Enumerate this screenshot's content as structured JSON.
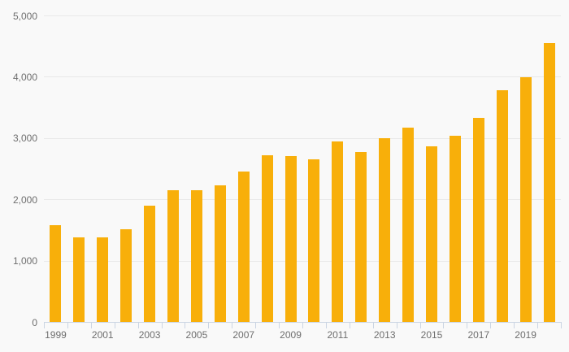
{
  "chart_data": {
    "type": "bar",
    "title": "",
    "categories": [
      "1999",
      "2000",
      "2001",
      "2002",
      "2003",
      "2004",
      "2005",
      "2006",
      "2007",
      "2008",
      "2009",
      "2010",
      "2011",
      "2012",
      "2013",
      "2014",
      "2015",
      "2016",
      "2017",
      "2018",
      "2019",
      "2020"
    ],
    "values": [
      1590,
      1390,
      1390,
      1520,
      1900,
      2150,
      2150,
      2240,
      2460,
      2730,
      2710,
      2660,
      2950,
      2780,
      3010,
      3180,
      2870,
      3050,
      3340,
      3790,
      4000,
      4560
    ],
    "xlabel": "",
    "ylabel": "",
    "ylim": [
      0,
      5000
    ],
    "ytick_values": [
      0,
      1000,
      2000,
      3000,
      4000,
      5000
    ],
    "ytick_labels": [
      "0",
      "1,000",
      "2,000",
      "3,000",
      "4,000",
      "5,000"
    ],
    "xtick_labels": [
      "1999",
      "2001",
      "2003",
      "2005",
      "2007",
      "2009",
      "2011",
      "2013",
      "2015",
      "2017",
      "2019"
    ],
    "x_label_every": 2,
    "grid": "horizontal",
    "legend": "none",
    "colors": {
      "bar": "#F8AF0A",
      "background": "#F9F9F9",
      "gridline": "#E9E9E9",
      "axis_line": "#CBD5E3",
      "tick_mark": "#CBD5E3",
      "tick_label": "#6E6E6E"
    }
  }
}
